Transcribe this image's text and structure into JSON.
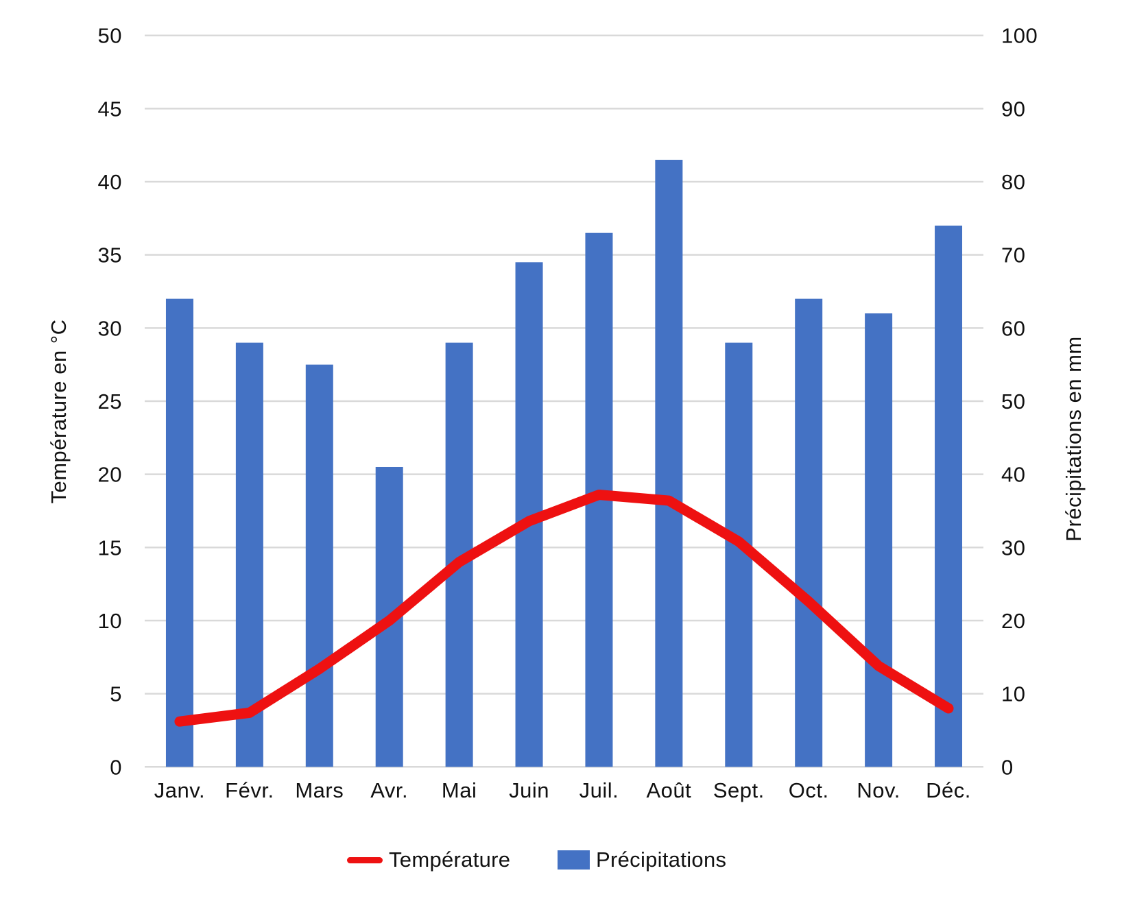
{
  "chart_data": {
    "type": "combo",
    "categories": [
      "Janv.",
      "Févr.",
      "Mars",
      "Avr.",
      "Mai",
      "Juin",
      "Juil.",
      "Août",
      "Sept.",
      "Oct.",
      "Nov.",
      "Déc."
    ],
    "series": [
      {
        "name": "Température",
        "type": "line",
        "axis": "left",
        "unit": "°C",
        "color": "#ee1111",
        "values": [
          3.1,
          3.7,
          6.7,
          10,
          14,
          16.8,
          18.6,
          18.2,
          15.4,
          11.3,
          6.9,
          4
        ]
      },
      {
        "name": "Précipitations",
        "type": "bar",
        "axis": "right",
        "unit": "mm",
        "color": "#4472c4",
        "values": [
          64,
          58,
          55,
          41,
          58,
          69,
          73,
          83,
          58,
          64,
          62,
          74
        ]
      }
    ],
    "left_axis": {
      "title": "Température en °C",
      "min": 0,
      "max": 50,
      "step": 5,
      "ticks": [
        0,
        5,
        10,
        15,
        20,
        25,
        30,
        35,
        40,
        45,
        50
      ]
    },
    "right_axis": {
      "title": "Précipitations en mm",
      "min": 0,
      "max": 100,
      "step": 10,
      "ticks": [
        0,
        10,
        20,
        30,
        40,
        50,
        60,
        70,
        80,
        90,
        100
      ]
    },
    "grid": true,
    "legend_position": "bottom"
  },
  "legend": {
    "temperature_label": "Température",
    "precipitations_label": "Précipitations"
  },
  "colors": {
    "bar_blue": "#4472c4",
    "line_red": "#ee1111",
    "gridline": "#d9d9d9",
    "text": "#111111",
    "background": "#ffffff"
  }
}
